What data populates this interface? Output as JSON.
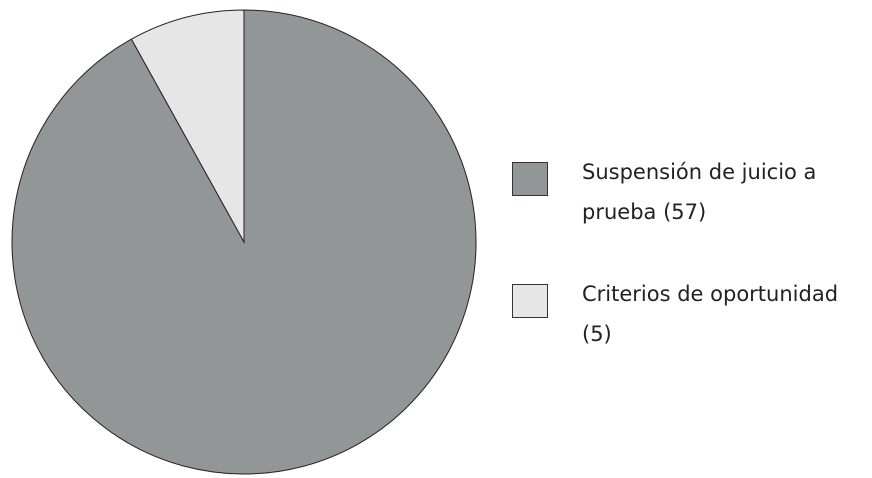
{
  "chart_data": {
    "type": "pie",
    "categories": [
      "Suspensión de juicio a prueba (57)",
      "Criterios de oportunidad (5)"
    ],
    "values": [
      57,
      5
    ],
    "colors": [
      "#939696",
      "#e6e6e6"
    ],
    "legend": "right"
  }
}
